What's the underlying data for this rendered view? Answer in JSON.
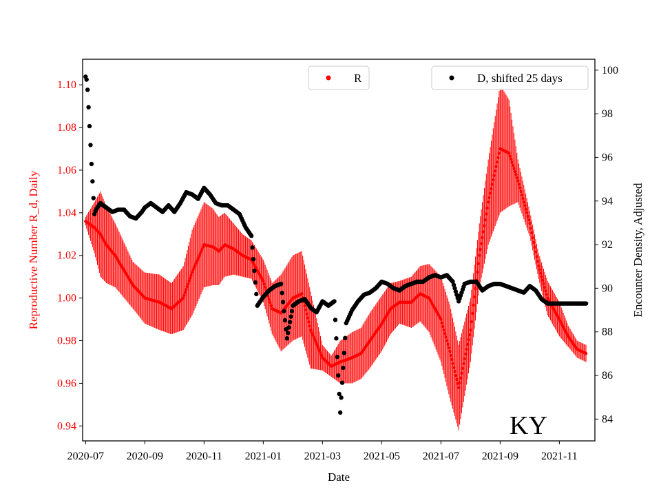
{
  "chart_data": {
    "type": "scatter",
    "x_axis": {
      "label": "Date",
      "ticks": [
        "2020-07",
        "2020-09",
        "2020-11",
        "2021-01",
        "2021-03",
        "2021-05",
        "2021-07",
        "2021-09",
        "2021-11"
      ],
      "range_months": [
        -0.1,
        17.2
      ]
    },
    "y_left": {
      "label": "Reproductive Number R_d, Daily",
      "color": "#ff0000",
      "range": [
        0.933,
        1.112
      ],
      "ticks": [
        "0.94",
        "0.96",
        "0.98",
        "1.00",
        "1.02",
        "1.04",
        "1.06",
        "1.08",
        "1.10"
      ]
    },
    "y_right": {
      "label": "Encounter Density, Adjusted",
      "color": "#000000",
      "range": [
        83.0,
        100.5
      ],
      "ticks": [
        "84",
        "86",
        "88",
        "90",
        "92",
        "94",
        "96",
        "98",
        "100"
      ]
    },
    "legend": [
      {
        "label": "R",
        "color": "#ff0000",
        "marker": "dot",
        "placement": "upper-center"
      },
      {
        "label": "D, shifted 25 days",
        "color": "#000000",
        "marker": "dot",
        "placement": "upper-right"
      }
    ],
    "annotation": "KY",
    "series_R": {
      "name": "R",
      "x_months": [
        0.0,
        0.3,
        0.5,
        0.7,
        1.0,
        1.3,
        1.6,
        2.0,
        2.5,
        2.9,
        3.3,
        3.6,
        4.0,
        4.3,
        4.5,
        4.7,
        5.0,
        5.3,
        5.6,
        6.0,
        6.3,
        6.6,
        7.0,
        7.3,
        7.6,
        8.0,
        8.3,
        8.6,
        9.0,
        9.3,
        9.6,
        10.0,
        10.3,
        10.6,
        11.0,
        11.3,
        11.6,
        12.0,
        12.3,
        12.6,
        13.0,
        13.3,
        13.6,
        14.0,
        14.3,
        14.6,
        15.0,
        15.3,
        15.6,
        16.0,
        16.3,
        16.6,
        16.9
      ],
      "values": [
        1.036,
        1.033,
        1.03,
        1.025,
        1.02,
        1.013,
        1.006,
        1.0,
        0.998,
        0.995,
        1.0,
        1.012,
        1.025,
        1.024,
        1.022,
        1.025,
        1.023,
        1.02,
        1.018,
        1.008,
        0.995,
        0.993,
        1.0,
        1.002,
        0.985,
        0.972,
        0.968,
        0.97,
        0.972,
        0.974,
        0.98,
        0.988,
        0.995,
        0.998,
        0.998,
        1.002,
        1.0,
        0.99,
        0.975,
        0.958,
        0.985,
        1.02,
        1.045,
        1.07,
        1.068,
        1.055,
        1.035,
        1.015,
        1.0,
        0.99,
        0.982,
        0.976,
        0.974
      ],
      "spread": [
        0.002,
        0.012,
        0.02,
        0.018,
        0.015,
        0.013,
        0.011,
        0.012,
        0.013,
        0.012,
        0.015,
        0.02,
        0.02,
        0.018,
        0.016,
        0.015,
        0.012,
        0.01,
        0.009,
        0.01,
        0.012,
        0.018,
        0.02,
        0.02,
        0.018,
        0.006,
        0.005,
        0.01,
        0.012,
        0.012,
        0.013,
        0.013,
        0.012,
        0.01,
        0.012,
        0.013,
        0.016,
        0.02,
        0.022,
        0.02,
        0.015,
        0.015,
        0.02,
        0.03,
        0.025,
        0.01,
        0.006,
        0.006,
        0.008,
        0.008,
        0.005,
        0.004,
        0.004
      ]
    },
    "series_D": {
      "name": "D, shifted 25 days",
      "x_months": [
        0.0,
        0.05,
        0.1,
        0.15,
        0.2,
        0.25,
        0.3,
        0.35,
        0.5,
        0.7,
        0.9,
        1.1,
        1.3,
        1.5,
        1.7,
        1.9,
        2.0,
        2.2,
        2.4,
        2.6,
        2.8,
        3.0,
        3.2,
        3.4,
        3.6,
        3.8,
        4.0,
        4.2,
        4.4,
        4.6,
        4.8,
        5.0,
        5.2,
        5.4,
        5.6,
        5.8,
        6.0,
        6.2,
        6.4,
        6.6,
        6.8,
        7.0,
        7.2,
        7.4,
        7.6,
        7.8,
        8.0,
        8.2,
        8.4,
        8.6,
        8.8,
        9.0,
        9.2,
        9.4,
        9.6,
        9.8,
        10.0,
        10.2,
        10.4,
        10.6,
        10.8,
        11.0,
        11.2,
        11.4,
        11.6,
        11.8,
        12.0,
        12.2,
        12.4,
        12.6,
        12.8,
        13.0,
        13.2,
        13.4,
        13.6,
        13.8,
        14.0,
        14.2,
        14.4,
        14.6,
        14.8,
        15.0,
        15.2,
        15.4,
        15.6,
        15.8,
        16.0,
        16.2,
        16.4,
        16.6,
        16.8,
        16.9
      ],
      "values": [
        99.7,
        99.5,
        98.3,
        97.0,
        95.7,
        94.5,
        93.4,
        93.6,
        93.9,
        93.7,
        93.5,
        93.6,
        93.6,
        93.3,
        93.2,
        93.5,
        93.7,
        93.9,
        93.7,
        93.5,
        93.8,
        93.5,
        93.9,
        94.4,
        94.3,
        94.1,
        94.6,
        94.3,
        93.9,
        93.8,
        93.8,
        93.6,
        93.4,
        92.8,
        92.4,
        89.2,
        89.6,
        89.9,
        90.1,
        90.2,
        87.7,
        89.2,
        89.4,
        89.5,
        89.1,
        88.9,
        89.4,
        89.2,
        89.4,
        84.3,
        88.4,
        89.0,
        89.4,
        89.7,
        89.8,
        90.0,
        90.3,
        90.2,
        90.0,
        89.9,
        90.1,
        90.2,
        90.3,
        90.3,
        90.5,
        90.6,
        90.5,
        90.6,
        90.3,
        89.4,
        90.2,
        90.3,
        90.3,
        89.9,
        90.1,
        90.2,
        90.2,
        90.1,
        90.0,
        89.9,
        89.8,
        90.1,
        89.9,
        89.5,
        89.3,
        89.3,
        89.3,
        89.3,
        89.3,
        89.3,
        89.3,
        89.3
      ]
    }
  }
}
